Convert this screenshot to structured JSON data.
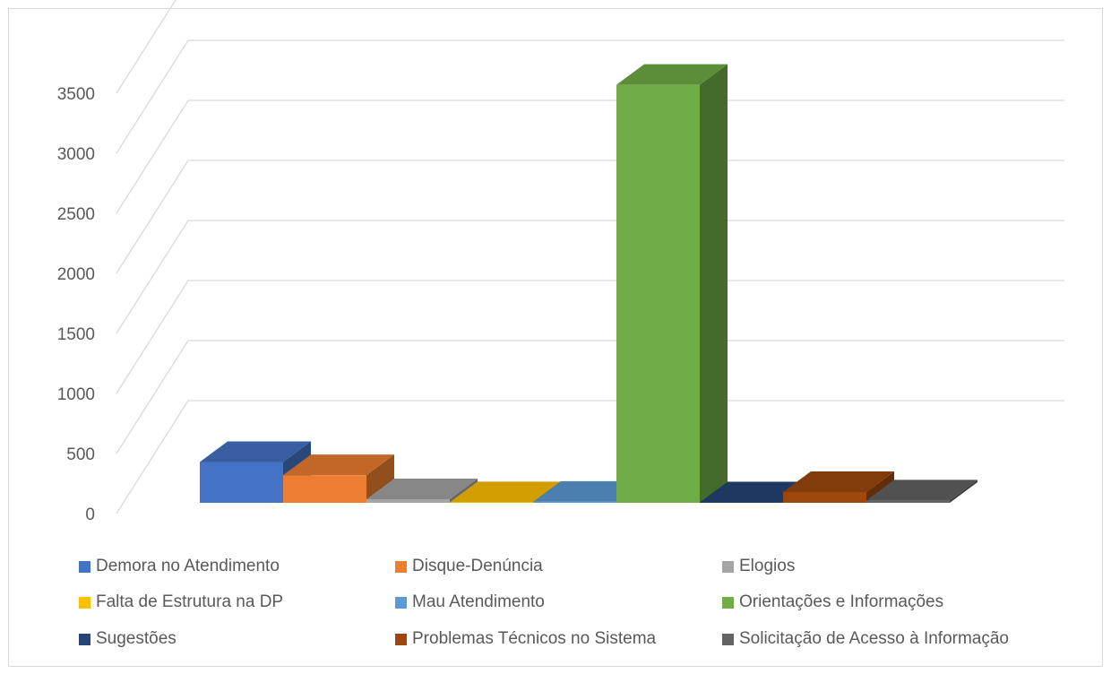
{
  "chart_data": {
    "type": "bar",
    "subtype": "3d-clustered-column",
    "title": "",
    "xlabel": "",
    "ylabel": "",
    "ylim": [
      0,
      3500
    ],
    "yticks": [
      0,
      500,
      1000,
      1500,
      2000,
      2500,
      3000,
      3500
    ],
    "grid": true,
    "legend_position": "bottom",
    "series": [
      {
        "name": "Demora no Atendimento",
        "value": 340,
        "color": "#4472c4"
      },
      {
        "name": "Disque-Denúncia",
        "value": 230,
        "color": "#ed7d31"
      },
      {
        "name": "Elogios",
        "value": 30,
        "color": "#a5a5a5"
      },
      {
        "name": "Falta de Estrutura na DP",
        "value": 5,
        "color": "#ffc000"
      },
      {
        "name": "Mau Atendimento",
        "value": 8,
        "color": "#5b9bd5"
      },
      {
        "name": "Orientações e Informações",
        "value": 3480,
        "color": "#70ad47"
      },
      {
        "name": "Sugestões",
        "value": 3,
        "color": "#264478"
      },
      {
        "name": "Problemas Técnicos no Sistema",
        "value": 90,
        "color": "#9e480e"
      },
      {
        "name": "Solicitação de Acesso à Informação",
        "value": 20,
        "color": "#636363"
      }
    ]
  }
}
